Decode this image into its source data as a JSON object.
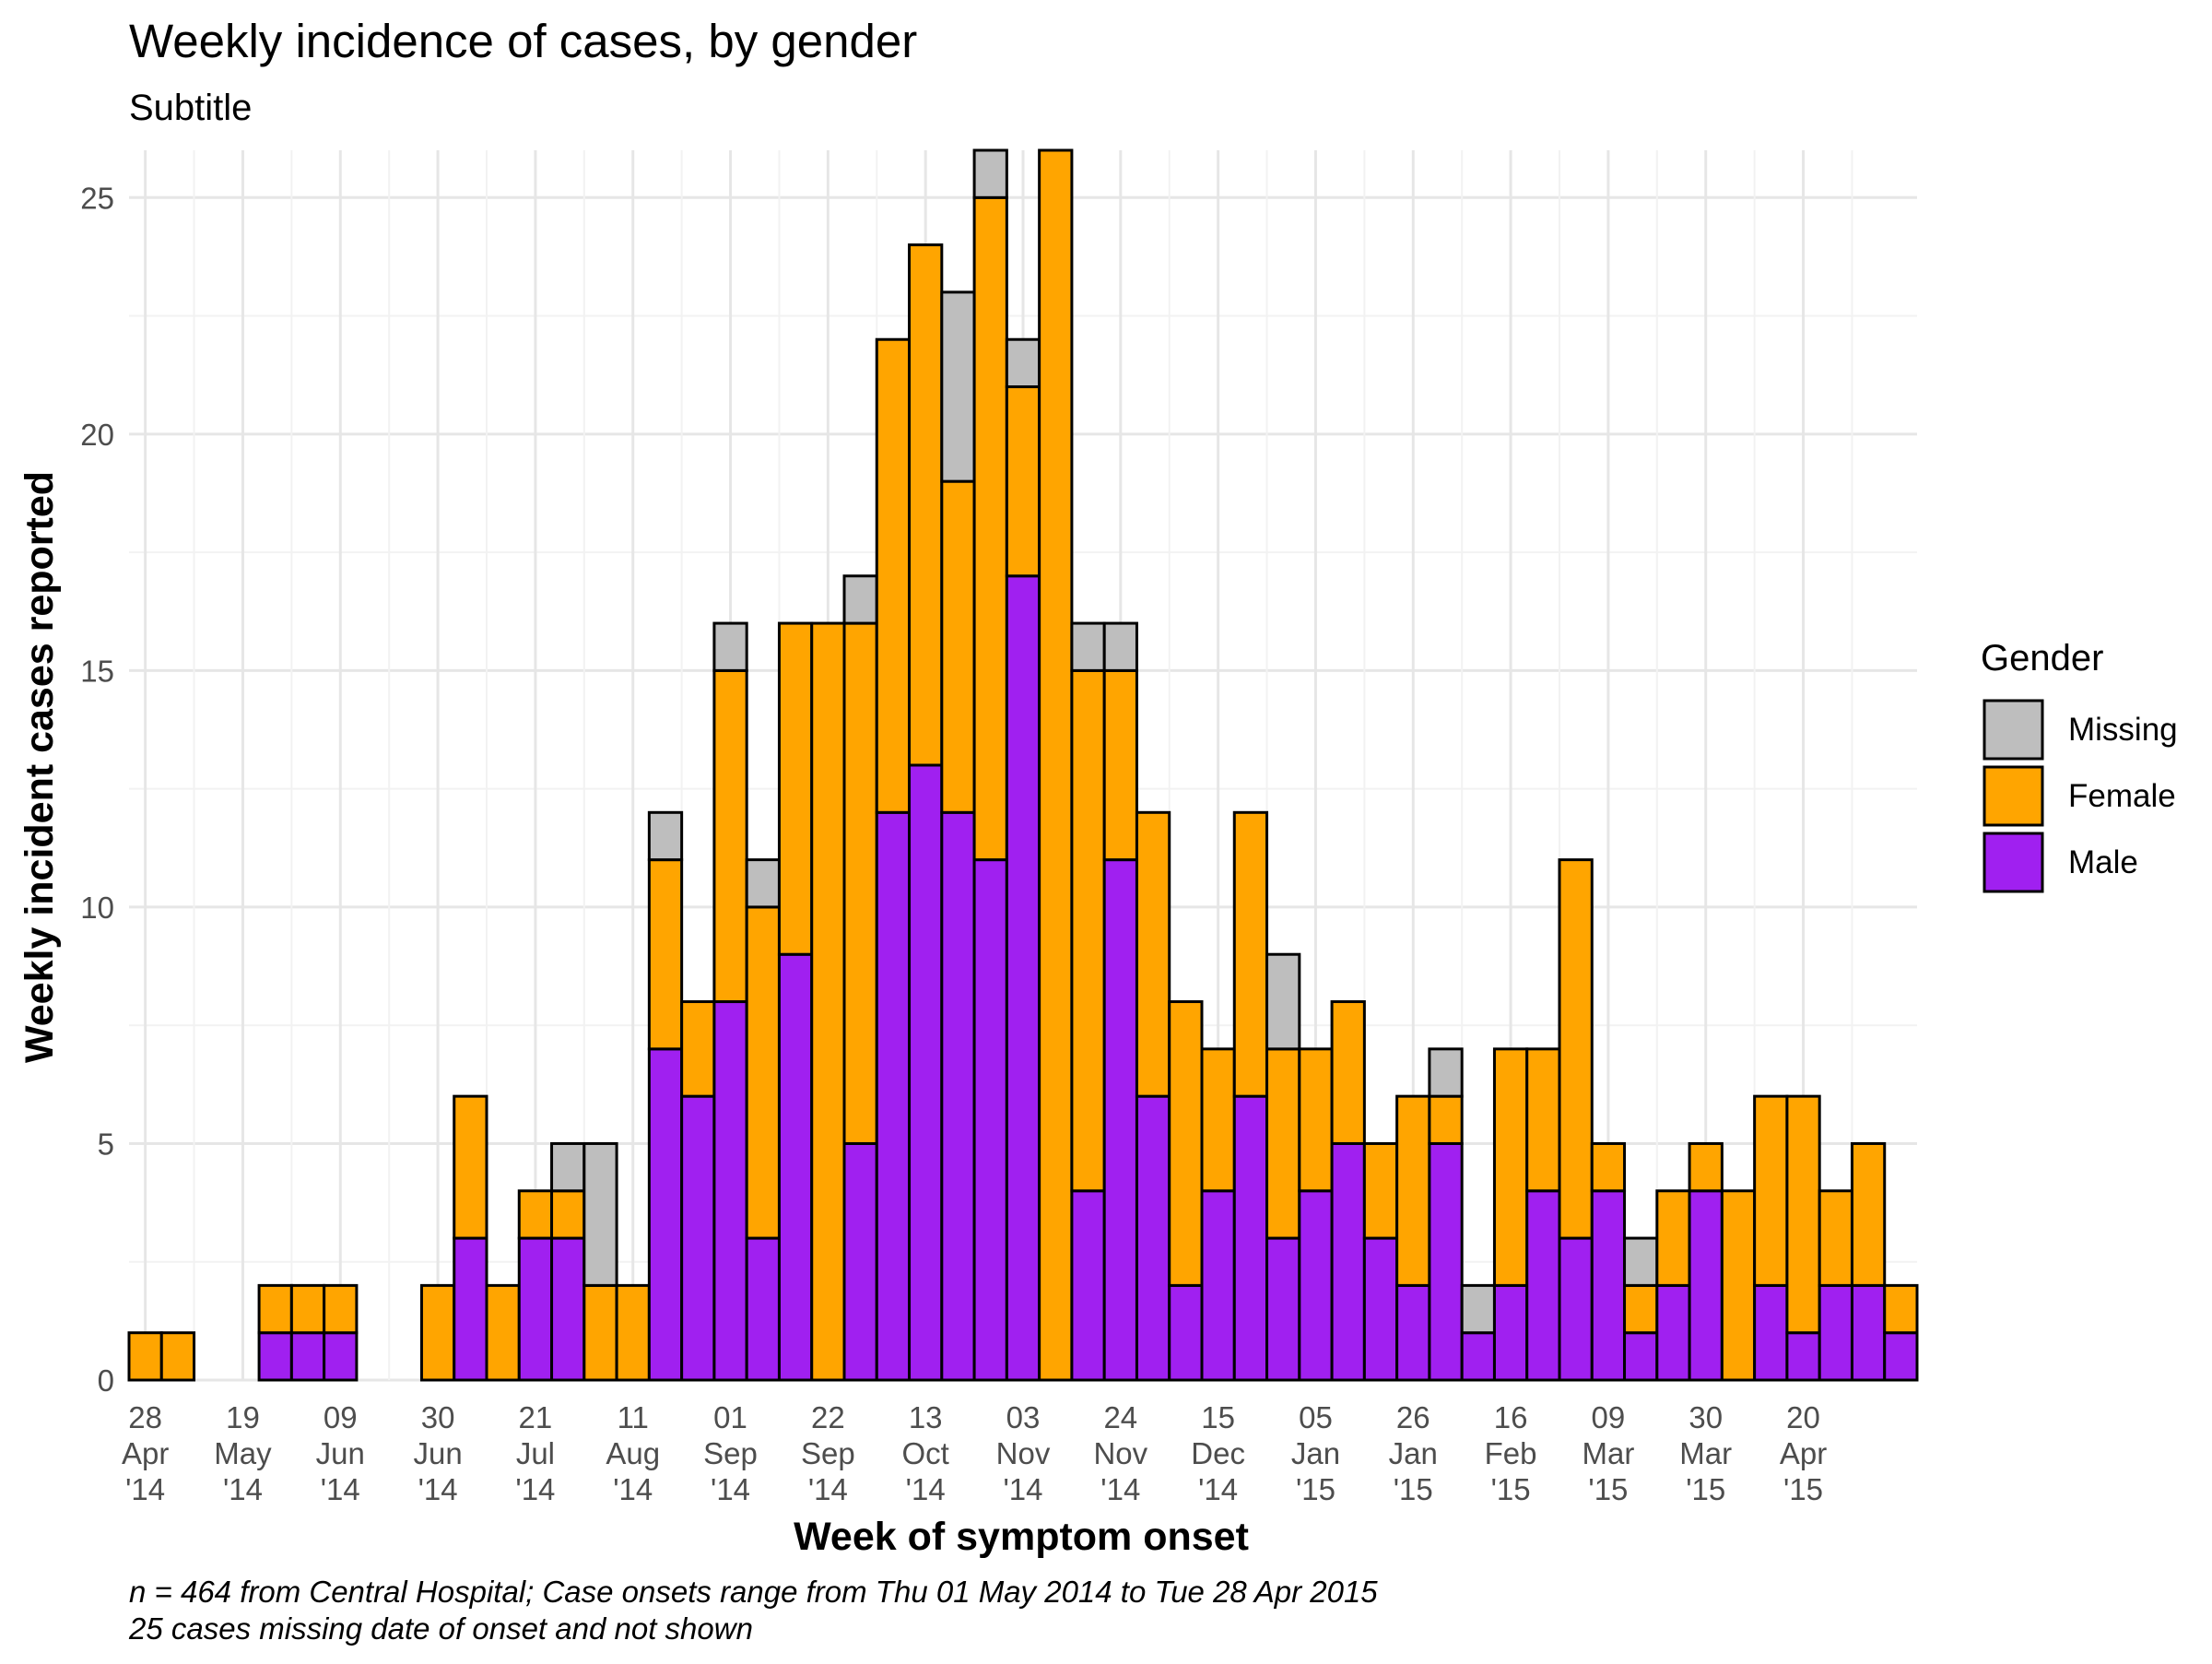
{
  "chart_data": {
    "type": "bar",
    "stacked": true,
    "title": "Weekly incidence of cases, by gender",
    "subtitle": "Subtitle",
    "xlabel": "Week of symptom onset",
    "ylabel": "Weekly incident cases reported",
    "caption_lines": [
      "n = 464 from Central Hospital; Case onsets range from Thu 01 May 2014 to Tue 28 Apr 2015",
      "25 cases missing date of onset and not shown"
    ],
    "ylim": [
      0,
      26
    ],
    "yticks": [
      0,
      5,
      10,
      15,
      20,
      25
    ],
    "grid": true,
    "legend": {
      "title": "Gender",
      "position": "right"
    },
    "x_tick_labels": [
      [
        "28",
        "Apr",
        "'14"
      ],
      [
        "19",
        "May",
        "'14"
      ],
      [
        "09",
        "Jun",
        "'14"
      ],
      [
        "30",
        "Jun",
        "'14"
      ],
      [
        "21",
        "Jul",
        "'14"
      ],
      [
        "11",
        "Aug",
        "'14"
      ],
      [
        "01",
        "Sep",
        "'14"
      ],
      [
        "22",
        "Sep",
        "'14"
      ],
      [
        "13",
        "Oct",
        "'14"
      ],
      [
        "03",
        "Nov",
        "'14"
      ],
      [
        "24",
        "Nov",
        "'14"
      ],
      [
        "15",
        "Dec",
        "'14"
      ],
      [
        "05",
        "Jan",
        "'15"
      ],
      [
        "26",
        "Jan",
        "'15"
      ],
      [
        "16",
        "Feb",
        "'15"
      ],
      [
        "09",
        "Mar",
        "'15"
      ],
      [
        "30",
        "Mar",
        "'15"
      ],
      [
        "20",
        "Apr",
        "'15"
      ]
    ],
    "series": [
      {
        "name": "Male",
        "color": "#A020F0",
        "values": [
          0,
          0,
          0,
          0,
          1,
          1,
          1,
          0,
          0,
          0,
          3,
          0,
          3,
          3,
          0,
          0,
          7,
          6,
          8,
          3,
          9,
          0,
          5,
          12,
          13,
          12,
          11,
          17,
          0,
          4,
          11,
          6,
          2,
          4,
          6,
          3,
          4,
          5,
          3,
          2,
          5,
          1,
          2,
          4,
          3,
          4,
          1,
          2,
          4,
          0,
          2,
          1,
          2,
          2,
          1
        ]
      },
      {
        "name": "Female",
        "color": "#FFA500",
        "values": [
          1,
          1,
          0,
          0,
          1,
          1,
          1,
          0,
          0,
          2,
          3,
          2,
          1,
          1,
          2,
          2,
          4,
          2,
          7,
          7,
          7,
          16,
          11,
          10,
          11,
          7,
          14,
          4,
          26,
          11,
          4,
          6,
          6,
          3,
          6,
          4,
          3,
          3,
          2,
          4,
          1,
          0,
          5,
          3,
          8,
          1,
          1,
          2,
          1,
          4,
          4,
          5,
          2,
          3,
          1
        ]
      },
      {
        "name": "Missing",
        "color": "#BEBEBE",
        "values": [
          0,
          0,
          0,
          0,
          0,
          0,
          0,
          0,
          0,
          0,
          0,
          0,
          0,
          1,
          3,
          0,
          1,
          0,
          1,
          1,
          0,
          0,
          1,
          0,
          0,
          4,
          1,
          1,
          0,
          1,
          1,
          0,
          0,
          0,
          0,
          2,
          0,
          0,
          0,
          0,
          1,
          1,
          0,
          0,
          0,
          0,
          1,
          0,
          0,
          0,
          0,
          0,
          0,
          0,
          0
        ]
      }
    ]
  }
}
